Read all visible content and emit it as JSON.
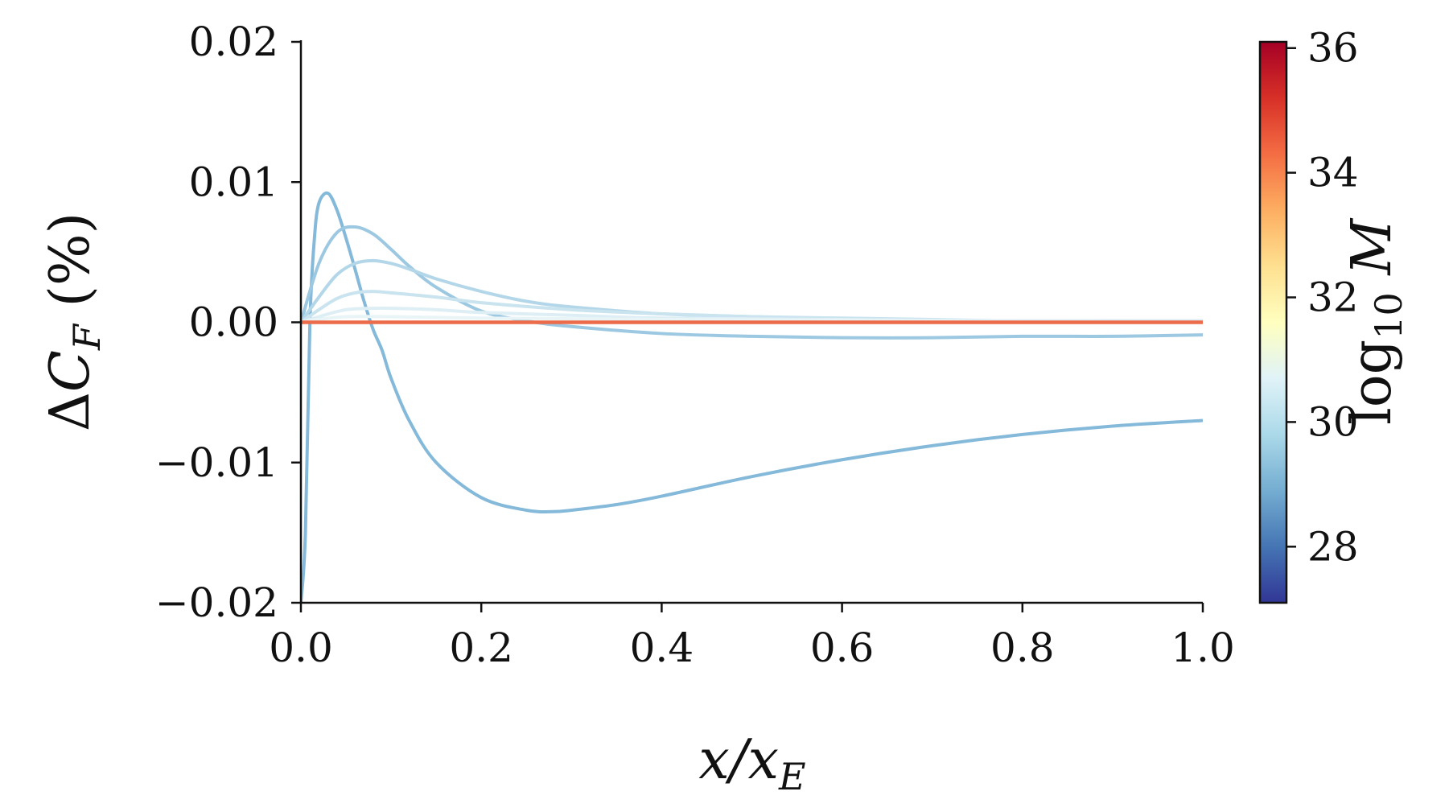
{
  "chart_data": {
    "type": "line",
    "title": "",
    "xlabel": "x/x_E",
    "ylabel": "ΔC_F (%)",
    "xlim": [
      0.0,
      1.0
    ],
    "ylim": [
      -0.02,
      0.02
    ],
    "xticks": [
      "0.0",
      "0.2",
      "0.4",
      "0.6",
      "0.8",
      "1.0"
    ],
    "yticks": [
      "0.02",
      "0.01",
      "0.00",
      "−0.01",
      "−0.02"
    ],
    "grid": false,
    "colorbar": {
      "label": "log10 M",
      "range": [
        27.1,
        36.1
      ],
      "ticks": [
        "36",
        "34",
        "32",
        "30",
        "28"
      ],
      "colormap": "RdYlBu_r",
      "colors": [
        "#313695",
        "#4575b4",
        "#74add1",
        "#abd9e9",
        "#e0f3f8",
        "#ffffbf",
        "#fee090",
        "#fdae61",
        "#f46d43",
        "#d73027",
        "#a50026"
      ]
    },
    "series": [
      {
        "color": "#85b9da",
        "x": [
          0.0,
          0.005,
          0.01,
          0.015,
          0.02,
          0.03,
          0.04,
          0.05,
          0.06,
          0.07,
          0.08,
          0.09,
          0.1,
          0.12,
          0.15,
          0.2,
          0.25,
          0.28,
          0.3,
          0.35,
          0.4,
          0.5,
          0.6,
          0.7,
          0.8,
          0.9,
          1.0
        ],
        "y": [
          -0.02,
          -0.015,
          0.0,
          0.006,
          0.0085,
          0.0092,
          0.008,
          0.006,
          0.0038,
          0.0015,
          -0.0005,
          -0.002,
          -0.004,
          -0.007,
          -0.01,
          -0.0125,
          -0.0134,
          -0.0135,
          -0.0134,
          -0.013,
          -0.0124,
          -0.011,
          -0.0098,
          -0.0088,
          -0.008,
          -0.0074,
          -0.007
        ]
      },
      {
        "color": "#9cc8e1",
        "x": [
          0.0,
          0.02,
          0.04,
          0.06,
          0.08,
          0.1,
          0.12,
          0.15,
          0.2,
          0.25,
          0.3,
          0.4,
          0.5,
          0.6,
          0.7,
          0.8,
          0.9,
          1.0
        ],
        "y": [
          0.0,
          0.0042,
          0.0064,
          0.0068,
          0.0063,
          0.0052,
          0.004,
          0.0025,
          0.0008,
          0.0001,
          -0.0003,
          -0.0008,
          -0.001,
          -0.0011,
          -0.0011,
          -0.001,
          -0.001,
          -0.0009
        ]
      },
      {
        "color": "#b3d7e9",
        "x": [
          0.0,
          0.02,
          0.04,
          0.06,
          0.08,
          0.1,
          0.12,
          0.15,
          0.2,
          0.25,
          0.3,
          0.4,
          0.5,
          0.6,
          0.7,
          0.8,
          0.9,
          1.0
        ],
        "y": [
          0.0,
          0.0018,
          0.0034,
          0.0042,
          0.0044,
          0.0042,
          0.0038,
          0.0031,
          0.0022,
          0.0015,
          0.0011,
          0.0006,
          0.0004,
          0.0002,
          0.0001,
          0.0001,
          0.0001,
          0.0001
        ]
      },
      {
        "color": "#c9e3ef",
        "x": [
          0.0,
          0.02,
          0.04,
          0.06,
          0.08,
          0.1,
          0.15,
          0.2,
          0.3,
          0.4,
          0.5,
          0.6,
          0.7,
          0.8,
          1.0
        ],
        "y": [
          0.0,
          0.0009,
          0.0017,
          0.0021,
          0.0022,
          0.0021,
          0.0018,
          0.0014,
          0.0009,
          0.0006,
          0.0004,
          0.0003,
          0.0002,
          0.0001,
          0.0001
        ]
      },
      {
        "color": "#ddeef5",
        "x": [
          0.0,
          0.02,
          0.05,
          0.08,
          0.1,
          0.15,
          0.2,
          0.3,
          0.4,
          0.6,
          0.8,
          1.0
        ],
        "y": [
          0.0,
          0.0004,
          0.0009,
          0.001,
          0.001,
          0.0009,
          0.0007,
          0.0005,
          0.0003,
          0.0002,
          0.0001,
          0.0001
        ]
      },
      {
        "color": "#e9f4f7",
        "x": [
          0.0,
          0.02,
          0.05,
          0.1,
          0.2,
          0.4,
          0.7,
          1.0
        ],
        "y": [
          0.0,
          0.0002,
          0.0004,
          0.0004,
          0.0003,
          0.0002,
          0.0001,
          0.0
        ]
      },
      {
        "color": "#ec6b4a",
        "x": [
          0.0,
          1.0
        ],
        "y": [
          0.0,
          0.0
        ]
      }
    ]
  }
}
